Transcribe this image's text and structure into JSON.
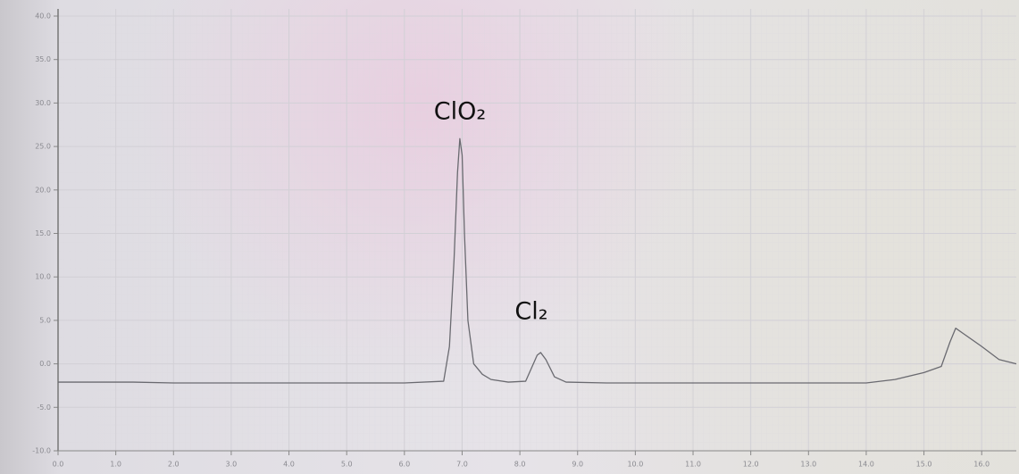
{
  "chart_data": {
    "type": "line",
    "xlim": [
      0,
      16.6
    ],
    "ylim": [
      -10,
      40
    ],
    "grid": true,
    "xticks": [
      {
        "value": 0,
        "label": "0.0"
      },
      {
        "value": 1,
        "label": "1.0"
      },
      {
        "value": 2,
        "label": "2.0"
      },
      {
        "value": 3,
        "label": "3.0"
      },
      {
        "value": 4,
        "label": "4.0"
      },
      {
        "value": 5,
        "label": "5.0"
      },
      {
        "value": 6,
        "label": "6.0"
      },
      {
        "value": 7,
        "label": "7.0"
      },
      {
        "value": 8,
        "label": "8.0"
      },
      {
        "value": 9,
        "label": "9.0"
      },
      {
        "value": 10,
        "label": "10.0"
      },
      {
        "value": 11,
        "label": "11.0"
      },
      {
        "value": 12,
        "label": "12.0"
      },
      {
        "value": 13,
        "label": "13.0"
      },
      {
        "value": 14,
        "label": "14.0"
      },
      {
        "value": 15,
        "label": "15.0"
      },
      {
        "value": 16,
        "label": "16.0"
      }
    ],
    "yticks": [
      {
        "value": -10,
        "label": "-10.0"
      },
      {
        "value": -5,
        "label": "-5.0"
      },
      {
        "value": 0,
        "label": "0.0"
      },
      {
        "value": 5,
        "label": "5.0"
      },
      {
        "value": 10,
        "label": "10.0"
      },
      {
        "value": 15,
        "label": "15.0"
      },
      {
        "value": 20,
        "label": "20.0"
      },
      {
        "value": 25,
        "label": "25.0"
      },
      {
        "value": 30,
        "label": "30.0"
      },
      {
        "value": 35,
        "label": "35.0"
      },
      {
        "value": 40,
        "label": "40.0"
      }
    ],
    "annotations": [
      "ClO₂",
      "Cl₂"
    ],
    "x": [
      0,
      1.3,
      2,
      6.0,
      6.68,
      6.78,
      6.86,
      6.92,
      6.96,
      7.0,
      7.04,
      7.1,
      7.2,
      7.35,
      7.5,
      7.8,
      8.1,
      8.2,
      8.3,
      8.36,
      8.45,
      8.6,
      8.8,
      9.5,
      14.0,
      14.5,
      15.0,
      15.3,
      15.45,
      15.55,
      15.7,
      16.0,
      16.3,
      16.6
    ],
    "series": [
      {
        "color": "#6a6a70",
        "values": [
          -2.1,
          -2.1,
          -2.2,
          -2.2,
          -2.0,
          2.0,
          12.0,
          22.0,
          25.9,
          24.0,
          15.0,
          5.0,
          0.0,
          -1.2,
          -1.8,
          -2.1,
          -2.0,
          -0.5,
          1.0,
          1.3,
          0.5,
          -1.5,
          -2.1,
          -2.2,
          -2.2,
          -1.8,
          -1.0,
          -0.3,
          2.5,
          4.1,
          3.4,
          2.0,
          0.5,
          0.0
        ]
      }
    ]
  }
}
